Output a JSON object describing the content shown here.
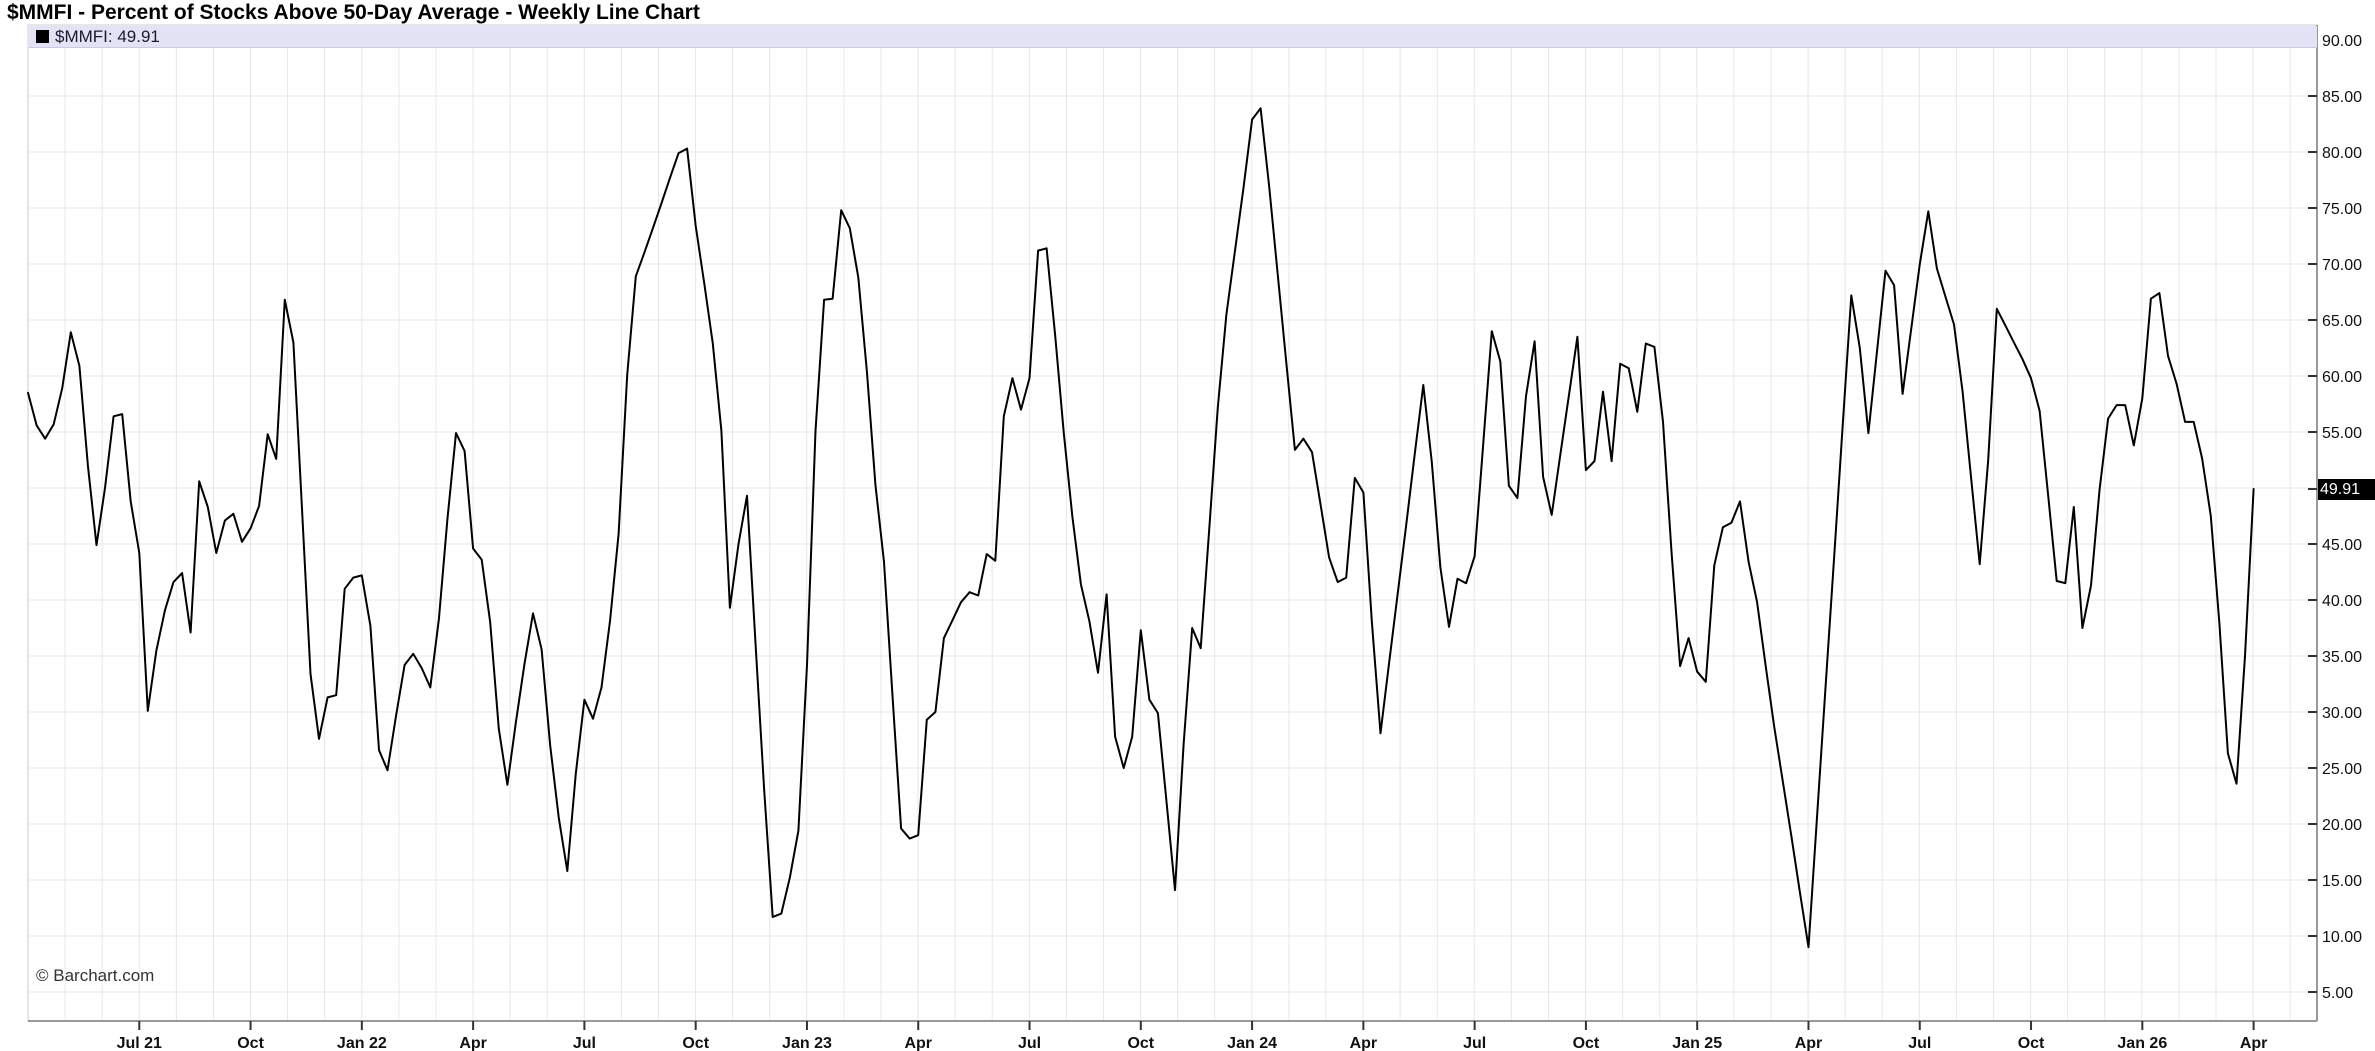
{
  "title": "$MMFI - Percent of Stocks Above 50-Day Average - Weekly Line Chart",
  "legend": {
    "swatch": "black-square-icon",
    "label": "$MMFI: 49.91"
  },
  "watermark": "© Barchart.com",
  "price_badge": "49.91",
  "colors": {
    "line": "#000000",
    "grid": "#e7e7e7",
    "axis": "#999999",
    "tick": "#333333",
    "legend_band": "#e3e3f6",
    "badge_bg": "#000000",
    "badge_text": "#ffffff"
  },
  "chart_data": {
    "type": "line",
    "title": "$MMFI - Percent of Stocks Above 50-Day Average - Weekly Line Chart",
    "ylabel": "Percent of Stocks Above 50-Day Average",
    "ylim": [
      2.5,
      91.5
    ],
    "y_ticks": [
      90,
      85,
      80,
      75,
      70,
      65,
      60,
      55,
      45,
      40,
      35,
      30,
      25,
      20,
      15,
      10,
      5
    ],
    "y_tick_labels": [
      "90.00",
      "85.00",
      "80.00",
      "75.00",
      "70.00",
      "65.00",
      "60.00",
      "55.00",
      "45.00",
      "40.00",
      "35.00",
      "30.00",
      "25.00",
      "20.00",
      "15.00",
      "10.00",
      "5.00"
    ],
    "last_value": 49.91,
    "grid": true,
    "legend_position": "top",
    "x_tick_labels": [
      "Jul 21",
      "Oct",
      "Jan 22",
      "Apr",
      "Jul",
      "Oct",
      "Jan 23",
      "Apr",
      "Jul",
      "Oct",
      "Jan 24",
      "Apr",
      "Jul",
      "Oct",
      "Jan 25",
      "Apr",
      "Jul",
      "Oct",
      "Jan 26",
      "Apr"
    ],
    "x_tick_weeks": [
      13,
      26,
      39,
      52,
      65,
      78,
      91,
      104,
      117,
      130,
      143,
      156,
      169,
      182,
      195,
      208,
      221,
      234,
      247,
      260
    ],
    "series": [
      {
        "name": "$MMFI",
        "color": "#000000",
        "frequency": "weekly",
        "values": [
          58.5,
          55.6,
          54.4,
          55.7,
          58.9,
          63.9,
          60.9,
          52.0,
          44.9,
          50.0,
          56.4,
          56.6,
          48.8,
          44.2,
          30.1,
          35.5,
          39.1,
          41.6,
          42.4,
          37.1,
          50.6,
          48.3,
          44.2,
          47.1,
          47.7,
          45.2,
          46.4,
          48.4,
          54.8,
          52.6,
          66.8,
          63.0,
          48.3,
          33.4,
          27.6,
          31.3,
          31.5,
          41.0,
          42.0,
          42.2,
          37.7,
          26.6,
          24.8,
          29.7,
          34.2,
          35.2,
          33.9,
          32.2,
          38.3,
          47.2,
          54.9,
          53.3,
          44.6,
          43.6,
          38.0,
          28.5,
          23.5,
          29.1,
          34.3,
          38.8,
          35.6,
          27.0,
          20.6,
          15.8,
          24.5,
          31.1,
          29.4,
          32.2,
          38.2,
          45.9,
          60.1,
          68.9,
          71.0,
          73.2,
          75.4,
          77.7,
          79.9,
          80.3,
          73.4,
          68.3,
          62.9,
          55.1,
          39.3,
          45.0,
          49.3,
          36.0,
          23.0,
          11.7,
          12.0,
          15.2,
          19.4,
          34.2,
          55.1,
          66.8,
          66.9,
          74.8,
          73.2,
          68.8,
          60.4,
          50.3,
          43.4,
          31.3,
          19.6,
          18.7,
          19.0,
          29.3,
          30.0,
          36.6,
          38.2,
          39.8,
          40.7,
          40.4,
          44.1,
          43.5,
          56.4,
          59.8,
          57.0,
          59.8,
          71.2,
          71.4,
          63.6,
          54.9,
          47.5,
          41.4,
          38.1,
          33.5,
          40.5,
          27.8,
          25.0,
          27.8,
          37.3,
          31.1,
          29.9,
          22.0,
          14.1,
          27.1,
          37.5,
          35.7,
          46.4,
          57.2,
          65.5,
          71.2,
          76.8,
          82.9,
          83.9,
          76.9,
          69.0,
          61.2,
          53.4,
          54.4,
          53.2,
          48.5,
          43.8,
          41.6,
          42.0,
          50.9,
          49.6,
          38.0,
          28.1,
          34.3,
          40.5,
          46.7,
          53.0,
          59.2,
          52.3,
          42.9,
          37.6,
          41.9,
          41.5,
          43.9,
          53.9,
          64.0,
          61.3,
          50.2,
          49.1,
          58.2,
          63.1,
          51.0,
          47.6,
          52.9,
          58.2,
          63.5,
          51.6,
          52.4,
          58.6,
          52.4,
          61.1,
          60.7,
          56.8,
          62.9,
          62.6,
          55.9,
          44.3,
          34.1,
          36.6,
          33.6,
          32.7,
          43.1,
          46.5,
          46.9,
          48.8,
          43.4,
          39.8,
          34.1,
          28.7,
          23.8,
          18.9,
          13.9,
          9.0,
          20.6,
          32.3,
          43.9,
          55.6,
          67.2,
          62.5,
          54.9,
          62.2,
          69.4,
          68.1,
          58.4,
          64.2,
          70.0,
          74.7,
          69.6,
          67.1,
          64.6,
          58.6,
          50.9,
          43.2,
          52.5,
          66.0,
          64.5,
          63.0,
          61.5,
          59.8,
          56.9,
          49.3,
          41.7,
          41.5,
          48.3,
          37.5,
          41.3,
          49.8,
          56.2,
          57.4,
          57.4,
          53.8,
          58.0,
          66.9,
          67.4,
          61.8,
          59.3,
          55.9,
          55.9,
          52.6,
          47.5,
          37.9,
          26.3,
          23.6,
          35.0,
          49.91
        ]
      }
    ]
  }
}
